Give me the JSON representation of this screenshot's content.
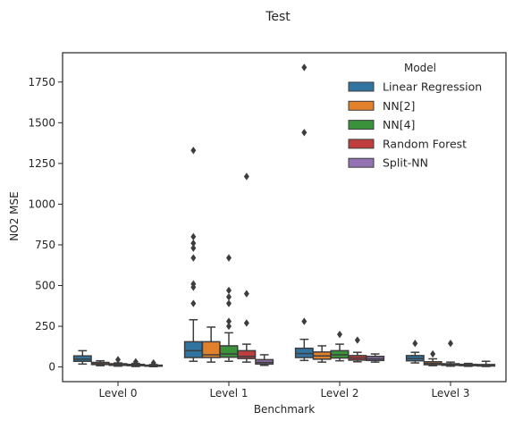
{
  "chart_data": {
    "type": "boxplot",
    "title": "Test",
    "xlabel": "Benchmark",
    "ylabel": "NO2 MSE",
    "ylim": [
      -90,
      1930
    ],
    "yticks": [
      0,
      250,
      500,
      750,
      1000,
      1250,
      1500,
      1750
    ],
    "categories": [
      "Level 0",
      "Level 1",
      "Level 2",
      "Level 3"
    ],
    "grid": false,
    "legend": {
      "title": "Model",
      "placement": "top-right"
    },
    "series": [
      {
        "name": "Linear Regression",
        "color": "#3274a1",
        "boxes": [
          {
            "whisker_low": 18,
            "q1": 35,
            "median": 48,
            "q3": 68,
            "whisker_high": 100,
            "outliers": []
          },
          {
            "whisker_low": 35,
            "q1": 58,
            "median": 100,
            "q3": 155,
            "whisker_high": 290,
            "outliers": [
              390,
              490,
              510,
              670,
              730,
              760,
              800,
              1330
            ]
          },
          {
            "whisker_low": 40,
            "q1": 58,
            "median": 82,
            "q3": 115,
            "whisker_high": 170,
            "outliers": [
              280,
              1440,
              1840
            ]
          },
          {
            "whisker_low": 25,
            "q1": 38,
            "median": 52,
            "q3": 70,
            "whisker_high": 90,
            "outliers": [
              145
            ]
          }
        ]
      },
      {
        "name": "NN[2]",
        "color": "#e1812c",
        "boxes": [
          {
            "whisker_low": 8,
            "q1": 15,
            "median": 20,
            "q3": 28,
            "whisker_high": 38,
            "outliers": []
          },
          {
            "whisker_low": 30,
            "q1": 58,
            "median": 75,
            "q3": 155,
            "whisker_high": 245,
            "outliers": []
          },
          {
            "whisker_low": 30,
            "q1": 48,
            "median": 68,
            "q3": 92,
            "whisker_high": 130,
            "outliers": []
          },
          {
            "whisker_low": 8,
            "q1": 14,
            "median": 22,
            "q3": 32,
            "whisker_high": 50,
            "outliers": [
              80
            ]
          }
        ]
      },
      {
        "name": "NN[4]",
        "color": "#3a923a",
        "boxes": [
          {
            "whisker_low": 5,
            "q1": 10,
            "median": 14,
            "q3": 20,
            "whisker_high": 25,
            "outliers": [
              45
            ]
          },
          {
            "whisker_low": 35,
            "q1": 60,
            "median": 80,
            "q3": 130,
            "whisker_high": 210,
            "outliers": [
              250,
              280,
              390,
              430,
              470,
              670
            ]
          },
          {
            "whisker_low": 38,
            "q1": 55,
            "median": 75,
            "q3": 100,
            "whisker_high": 140,
            "outliers": [
              200
            ]
          },
          {
            "whisker_low": 5,
            "q1": 10,
            "median": 14,
            "q3": 20,
            "whisker_high": 30,
            "outliers": [
              145
            ]
          }
        ]
      },
      {
        "name": "Random Forest",
        "color": "#c03d3e",
        "boxes": [
          {
            "whisker_low": 3,
            "q1": 8,
            "median": 11,
            "q3": 16,
            "whisker_high": 22,
            "outliers": [
              32
            ]
          },
          {
            "whisker_low": 30,
            "q1": 52,
            "median": 65,
            "q3": 100,
            "whisker_high": 140,
            "outliers": [
              270,
              450,
              1170
            ]
          },
          {
            "whisker_low": 32,
            "q1": 42,
            "median": 55,
            "q3": 70,
            "whisker_high": 90,
            "outliers": [
              165
            ]
          },
          {
            "whisker_low": 4,
            "q1": 8,
            "median": 12,
            "q3": 16,
            "whisker_high": 22,
            "outliers": []
          }
        ]
      },
      {
        "name": "Split-NN",
        "color": "#9372b2",
        "boxes": [
          {
            "whisker_low": 2,
            "q1": 5,
            "median": 8,
            "q3": 11,
            "whisker_high": 15,
            "outliers": [
              25
            ]
          },
          {
            "whisker_low": 10,
            "q1": 18,
            "median": 28,
            "q3": 45,
            "whisker_high": 75,
            "outliers": []
          },
          {
            "whisker_low": 30,
            "q1": 40,
            "median": 50,
            "q3": 65,
            "whisker_high": 80,
            "outliers": []
          },
          {
            "whisker_low": 3,
            "q1": 6,
            "median": 10,
            "q3": 15,
            "whisker_high": 35,
            "outliers": []
          }
        ]
      }
    ]
  }
}
